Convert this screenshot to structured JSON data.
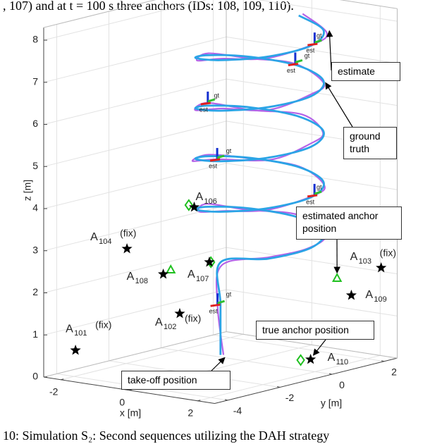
{
  "caption_top": ", 107) and at t = 100 s three anchors (IDs: 108, 109, 110).",
  "caption_bottom": "10: Simulation S₂: Second sequences utilizing the DAH strategy",
  "chart_data": {
    "type": "line3d",
    "xlabel": "x [m]",
    "ylabel": "y [m]",
    "zlabel": "z [m]",
    "xlim": [
      -2.5,
      2.5
    ],
    "ylim": [
      -4.5,
      2.5
    ],
    "zlim": [
      0,
      8.3
    ],
    "xticks": [
      -2,
      0,
      2
    ],
    "yticks": [
      -4,
      -2,
      0,
      2
    ],
    "zticks": [
      0,
      1,
      2,
      3,
      4,
      5,
      6,
      7,
      8
    ],
    "grid": true,
    "series": [
      {
        "name": "ground truth",
        "color": "#2ba4e6",
        "x": [
          0,
          0,
          0,
          1.06,
          1.5,
          1.06,
          0,
          -1.06,
          -1.5,
          -1.06,
          0,
          1.06,
          1.5,
          1.06,
          0,
          -1.06,
          -1.5,
          -1.06,
          0,
          1.06,
          1.5,
          1.06,
          0,
          -1.06,
          -1.5,
          -1.06,
          0,
          1.06,
          1.5,
          1.06,
          0,
          -1.06,
          -1.5,
          -1.06,
          0,
          1.06,
          1.5,
          1.06,
          0
        ],
        "y": [
          -1,
          -1,
          -1,
          -0.56,
          0.5,
          1.56,
          2,
          1.56,
          0.5,
          -0.56,
          -1,
          -0.56,
          0.5,
          1.56,
          2,
          1.56,
          0.5,
          -0.56,
          -1,
          -0.56,
          0.5,
          1.56,
          2,
          1.56,
          0.5,
          -0.56,
          -1,
          -0.56,
          0.5,
          1.56,
          2,
          1.56,
          0.5,
          -0.56,
          -1,
          -0.56,
          0.5,
          1.56,
          2
        ],
        "z": [
          0.3,
          1.5,
          2.5,
          2.65,
          2.8,
          2.95,
          3.1,
          3.25,
          3.4,
          3.55,
          3.7,
          3.85,
          4,
          4.15,
          4.3,
          4.45,
          4.6,
          4.75,
          4.9,
          5.05,
          5.2,
          5.35,
          5.5,
          5.65,
          5.8,
          5.95,
          6.1,
          6.25,
          6.4,
          6.55,
          6.7,
          6.85,
          7,
          7.15,
          7.3,
          7.45,
          7.6,
          7.75,
          7.9
        ]
      },
      {
        "name": "estimate",
        "color": "#b462e8",
        "x": [
          0.05,
          -0.04,
          0.08,
          1.12,
          1.43,
          1.1,
          -0.06,
          -1.14,
          -1.58,
          -1.0,
          0.07,
          1.02,
          1.56,
          1.12,
          0.05,
          -1.1,
          -1.45,
          -1.12,
          -0.05,
          1.1,
          1.44,
          1.0,
          0.08,
          -1.0,
          -1.56,
          -1.1,
          0.04,
          1.12,
          1.52,
          1.1,
          -0.07,
          -1.12,
          -1.48,
          -1.0,
          0.06,
          1.0,
          1.58,
          1.12,
          0.1
        ],
        "y": [
          -0.95,
          -1.06,
          -1.05,
          -0.6,
          0.45,
          1.6,
          2.05,
          1.5,
          0.55,
          -0.5,
          -0.94,
          -0.52,
          0.56,
          1.5,
          1.95,
          1.62,
          0.45,
          -0.6,
          -1.06,
          -0.5,
          0.52,
          1.62,
          2.04,
          1.52,
          0.56,
          -0.52,
          -0.96,
          -0.6,
          0.46,
          1.52,
          1.96,
          1.6,
          0.48,
          -0.58,
          -1.04,
          -0.52,
          0.54,
          1.6,
          2.02
        ],
        "z": [
          0.3,
          1.5,
          2.45,
          2.7,
          2.78,
          2.9,
          3.15,
          3.22,
          3.45,
          3.5,
          3.72,
          3.8,
          4.05,
          4.1,
          4.33,
          4.42,
          4.65,
          4.7,
          4.95,
          5.0,
          5.25,
          5.3,
          5.55,
          5.6,
          5.85,
          5.9,
          6.15,
          6.2,
          6.45,
          6.5,
          6.75,
          6.8,
          7.05,
          7.1,
          7.35,
          7.4,
          7.65,
          7.7,
          7.95
        ]
      }
    ],
    "anchors": [
      {
        "label": "A",
        "id": "101",
        "note": "(fix)",
        "true": [
          -2.34,
          -3.49,
          0.5
        ],
        "estimate": null,
        "est_marker": null
      },
      {
        "label": "A",
        "id": "102",
        "note": "(fix)",
        "true": [
          -0.07,
          -2.47,
          1.5
        ],
        "estimate": null,
        "est_marker": null
      },
      {
        "label": "A",
        "id": "103",
        "note": "(fix)",
        "true": [
          2.38,
          2.04,
          2.2
        ],
        "estimate": null,
        "est_marker": null
      },
      {
        "label": "A",
        "id": "104",
        "note": "(fix)",
        "true": [
          -1.14,
          -3.09,
          3
        ],
        "estimate": null,
        "est_marker": null
      },
      {
        "label": "A",
        "id": "106",
        "note": null,
        "true": [
          0.11,
          -2.15,
          4
        ],
        "estimate": [
          -0.14,
          -2.03,
          4
        ],
        "est_marker": "diamond"
      },
      {
        "label": "A",
        "id": "107",
        "note": null,
        "true": [
          -0.21,
          -1.15,
          2.5
        ],
        "estimate": [
          -0.18,
          -1.13,
          2.5
        ],
        "est_marker": "diamond"
      },
      {
        "label": "A",
        "id": "108",
        "note": null,
        "true": [
          -0.17,
          -2.97,
          2.5
        ],
        "estimate": [
          -0.34,
          -2.46,
          2.5
        ],
        "est_marker": "triangle"
      },
      {
        "label": "A",
        "id": "109",
        "note": null,
        "true": [
          1.7,
          1.79,
          1.5
        ],
        "estimate": [
          1.74,
          1.19,
          2
        ],
        "est_marker": "triangle"
      },
      {
        "label": "A",
        "id": "110",
        "note": null,
        "true": [
          1.95,
          -0.1,
          0.3
        ],
        "estimate": [
          1.82,
          -0.31,
          0.3
        ],
        "est_marker": "diamond"
      }
    ],
    "pose_labels": {
      "gt": "gt",
      "est": "est"
    },
    "annotations": [
      "estimated anchor position",
      "true anchor position",
      "take-off position"
    ]
  }
}
